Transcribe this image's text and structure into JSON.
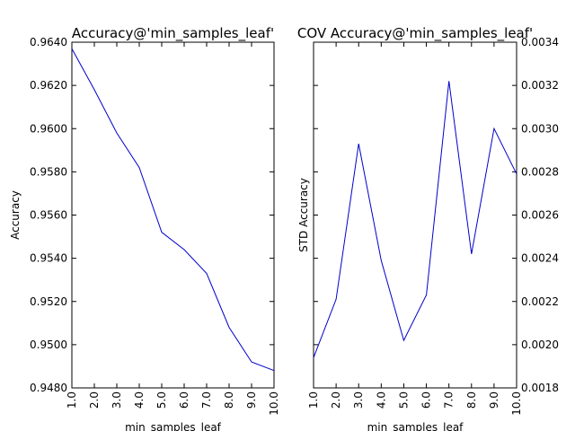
{
  "chart_data": [
    {
      "type": "line",
      "title": "Accuracy@'min_samples_leaf'",
      "xlabel": "min_samples_leaf",
      "ylabel": "Accuracy",
      "x": [
        1,
        2,
        3,
        4,
        5,
        6,
        7,
        8,
        9,
        10
      ],
      "xtick_labels": [
        "1.0",
        "2.0",
        "3.0",
        "4.0",
        "5.0",
        "6.0",
        "7.0",
        "8.0",
        "9.0",
        "10.0"
      ],
      "xlim": [
        1,
        10
      ],
      "ylim": [
        0.948,
        0.964
      ],
      "ytick_values": [
        0.948,
        0.95,
        0.952,
        0.954,
        0.956,
        0.958,
        0.96,
        0.962,
        0.964
      ],
      "ytick_labels": [
        "0.9480",
        "0.9500",
        "0.9520",
        "0.9540",
        "0.9560",
        "0.9580",
        "0.9600",
        "0.9620",
        "0.9640"
      ],
      "yaxis_side": "left",
      "series": [
        {
          "color": "#0000cc",
          "values": [
            0.9637,
            0.9618,
            0.9598,
            0.9582,
            0.9552,
            0.9544,
            0.9533,
            0.9508,
            0.9492,
            0.9488
          ]
        }
      ],
      "grid": false
    },
    {
      "type": "line",
      "title": "COV Accuracy@'min_samples_leaf'",
      "xlabel": "min_samples_leaf",
      "ylabel": "STD Accuracy",
      "x": [
        1,
        2,
        3,
        4,
        5,
        6,
        7,
        8,
        9,
        10
      ],
      "xtick_labels": [
        "1.0",
        "2.0",
        "3.0",
        "4.0",
        "5.0",
        "6.0",
        "7.0",
        "8.0",
        "9.0",
        "10.0"
      ],
      "xlim": [
        1,
        10
      ],
      "ylim": [
        0.0018,
        0.0034
      ],
      "ytick_values": [
        0.0018,
        0.002,
        0.0022,
        0.0024,
        0.0026,
        0.0028,
        0.003,
        0.0032,
        0.0034
      ],
      "ytick_labels": [
        "0.0018",
        "0.0020",
        "0.0022",
        "0.0024",
        "0.0026",
        "0.0028",
        "0.0030",
        "0.0032",
        "0.0034"
      ],
      "yaxis_side": "right",
      "series": [
        {
          "color": "#0000cc",
          "values": [
            0.00194,
            0.00221,
            0.00293,
            0.00239,
            0.00202,
            0.00223,
            0.00322,
            0.00242,
            0.003,
            0.00279
          ]
        }
      ],
      "grid": false
    }
  ]
}
